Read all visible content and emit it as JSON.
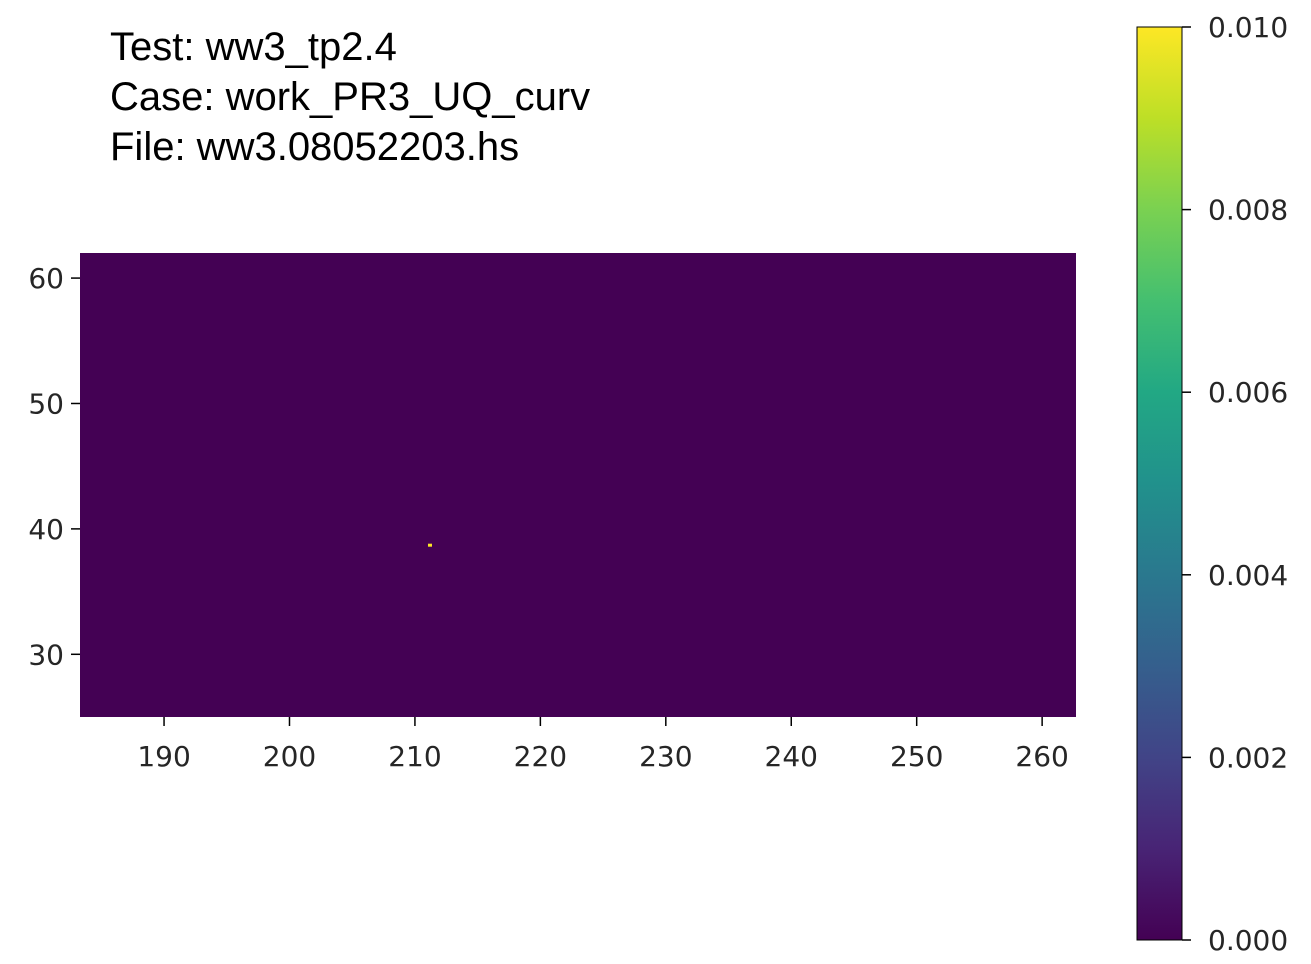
{
  "header": {
    "line1": "Test: ww3_tp2.4",
    "line2": "Case: work_PR3_UQ_curv",
    "line3": "File: ww3.08052203.hs"
  },
  "chart_data": {
    "type": "heatmap",
    "title": "",
    "xlabel": "",
    "ylabel": "",
    "xlim": [
      183.3,
      262.7
    ],
    "ylim": [
      25.0,
      62.0
    ],
    "x_ticks": [
      190,
      200,
      210,
      220,
      230,
      240,
      250,
      260
    ],
    "y_ticks": [
      30,
      40,
      50,
      60
    ],
    "background_value": 0.0,
    "background_color": "#440154",
    "hotspots": [
      {
        "x": 211.2,
        "y": 38.7,
        "color": "#fde725"
      }
    ],
    "colorbar": {
      "colormap": "viridis",
      "range": [
        0.0,
        0.01
      ],
      "ticks": [
        "0.000",
        "0.002",
        "0.004",
        "0.006",
        "0.008",
        "0.010"
      ]
    }
  }
}
